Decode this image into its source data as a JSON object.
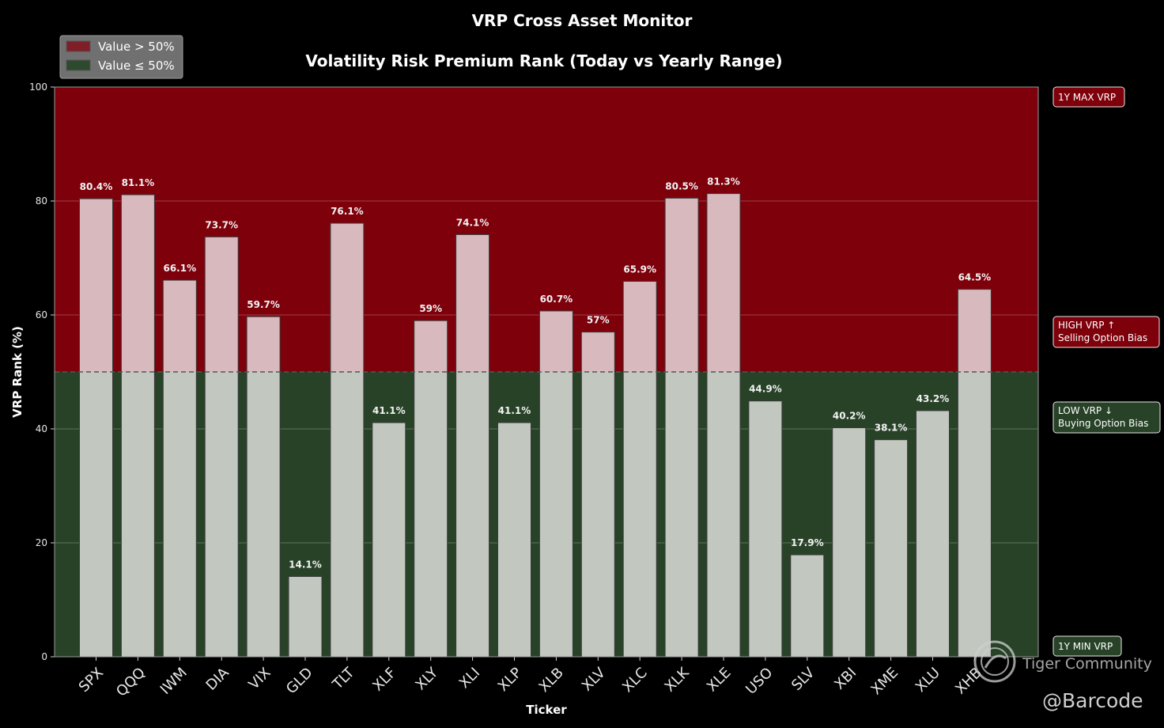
{
  "chart_data": {
    "type": "bar",
    "title": "VRP Cross Asset Monitor",
    "subtitle": "Volatility Risk Premium Rank (Today vs Yearly Range)",
    "xlabel": "Ticker",
    "ylabel": "VRP Rank (%)",
    "ylim": [
      0,
      100
    ],
    "yticks": [
      0,
      20,
      40,
      60,
      80,
      100
    ],
    "threshold": 50,
    "grid": true,
    "categories": [
      "SPX",
      "QQQ",
      "IWM",
      "DIA",
      "VIX",
      "GLD",
      "TLT",
      "XLF",
      "XLY",
      "XLI",
      "XLP",
      "XLB",
      "XLV",
      "XLC",
      "XLK",
      "XLE",
      "USO",
      "SLV",
      "XBI",
      "XME",
      "XLU",
      "XHB"
    ],
    "values": [
      80.4,
      81.1,
      66.1,
      73.7,
      59.7,
      14.1,
      76.1,
      41.1,
      59,
      74.1,
      41.1,
      60.7,
      57,
      65.9,
      80.5,
      81.3,
      44.9,
      17.9,
      40.2,
      38.1,
      43.2,
      64.5
    ],
    "value_labels": [
      "80.4%",
      "81.1%",
      "66.1%",
      "73.7%",
      "59.7%",
      "14.1%",
      "76.1%",
      "41.1%",
      "59%",
      "74.1%",
      "41.1%",
      "60.7%",
      "57%",
      "65.9%",
      "80.5%",
      "81.3%",
      "44.9%",
      "17.9%",
      "40.2%",
      "38.1%",
      "43.2%",
      "64.5%"
    ],
    "legend": {
      "placement": "top-left",
      "entries": [
        {
          "label": "Value > 50%",
          "color": "#7e1f28"
        },
        {
          "label": "Value ≤ 50%",
          "color": "#2d4a2e"
        }
      ]
    },
    "annotations": [
      {
        "text": "1Y MAX VRP",
        "y": 100,
        "style": "high"
      },
      {
        "text": "HIGH VRP ↑",
        "text2": "Selling Option Bias",
        "y": 60,
        "style": "high"
      },
      {
        "text": "LOW VRP ↓",
        "text2": "Buying Option Bias",
        "y": 40,
        "style": "low"
      },
      {
        "text": "1Y MIN VRP",
        "y": 0,
        "style": "low"
      }
    ],
    "colors": {
      "high_zone": "#7e000b",
      "low_zone": "#284228",
      "bar_high": "#d8b9bd",
      "bar_low": "#c2c8c0"
    }
  },
  "watermark": {
    "brand": "Tiger Community",
    "handle": "@Barcode"
  }
}
